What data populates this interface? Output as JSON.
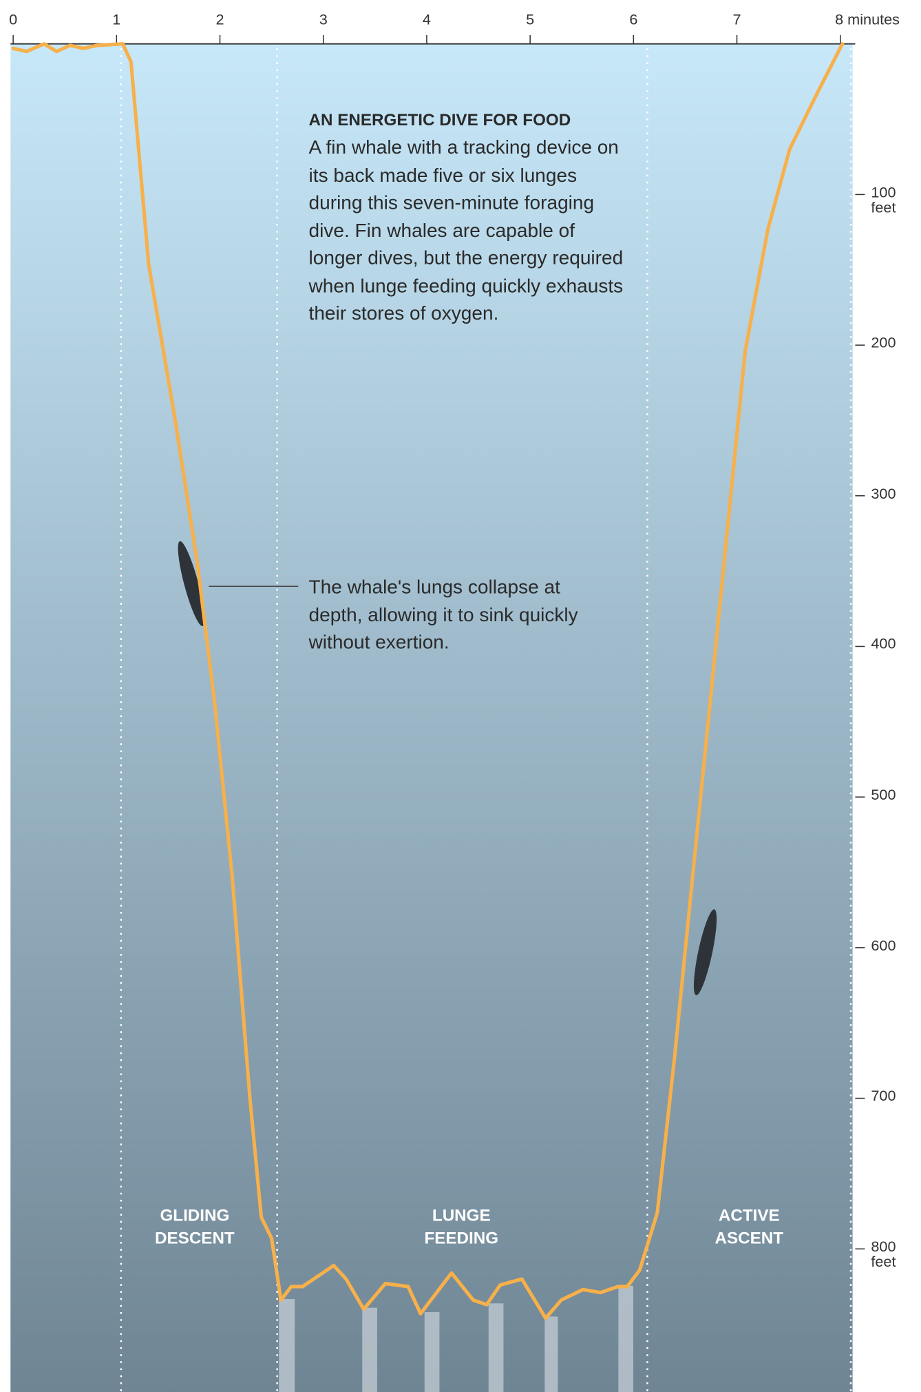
{
  "chart_data": {
    "type": "line",
    "title": "AN ENERGETIC DIVE FOR FOOD",
    "description": "A fin whale with a tracking device on its back made five or six lunges during this seven-minute foraging dive. Fin whales are capable of longer dives, but the energy required when lunge feeding quickly exhausts their stores of oxygen.",
    "annotation": "The whale's lungs collapse at depth, allowing it to sink quickly without exertion.",
    "phases": [
      "GLIDING DESCENT",
      "LUNGE FEEDING",
      "ACTIVE ASCENT"
    ],
    "x": [
      0,
      0.13,
      0.3,
      0.42,
      0.55,
      0.68,
      0.81,
      1.06,
      1.14,
      1.31,
      1.57,
      1.78,
      1.95,
      2.12,
      2.29,
      2.4,
      2.5,
      2.59,
      2.69,
      2.8,
      3.1,
      3.22,
      3.39,
      3.6,
      3.82,
      3.94,
      4.24,
      4.45,
      4.58,
      4.71,
      4.92,
      5.15,
      5.3,
      5.51,
      5.68,
      5.85,
      5.94,
      6.06,
      6.23,
      6.4,
      6.57,
      6.74,
      6.91,
      7.08,
      7.3,
      7.51,
      7.76,
      8.02
    ],
    "series": [
      {
        "color": "#f7b04a",
        "values": [
          3,
          5,
          0,
          5,
          1,
          3,
          1,
          0,
          12,
          146,
          251,
          344,
          438,
          554,
          700,
          779,
          793,
          834,
          825,
          825,
          811,
          820,
          840,
          823,
          825,
          843,
          816,
          834,
          837,
          824,
          820,
          846,
          834,
          827,
          829,
          825,
          825,
          814,
          776,
          671,
          554,
          438,
          321,
          204,
          123,
          70,
          35,
          0
        ]
      }
    ],
    "xlim": [
      0,
      8
    ],
    "xticks": [
      0,
      1,
      2,
      3,
      4,
      5,
      6,
      7,
      {
        "value": 8,
        "label": "8 minutes"
      }
    ],
    "ylim": [
      895,
      0
    ],
    "yticks": [
      {
        "value": 100,
        "label": "100 feet"
      },
      200,
      300,
      400,
      500,
      600,
      700,
      {
        "value": 800,
        "label": "800 feet"
      }
    ]
  }
}
